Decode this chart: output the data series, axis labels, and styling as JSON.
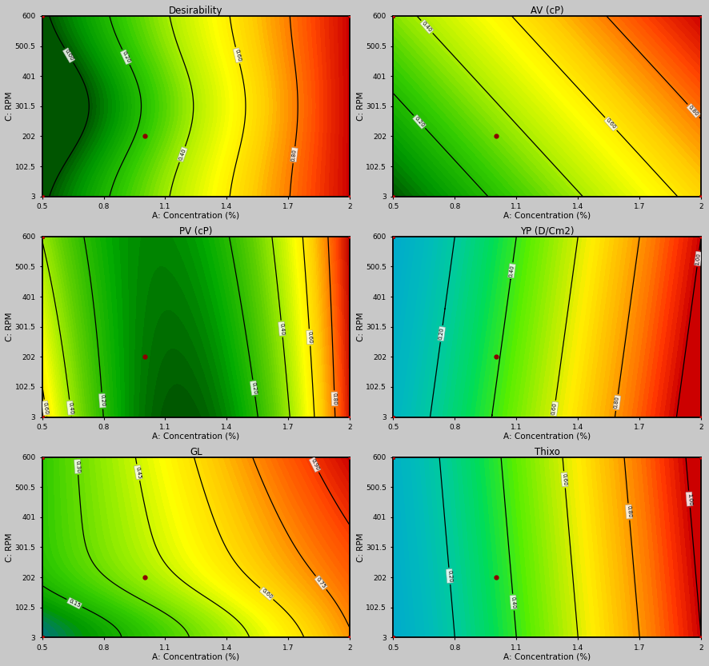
{
  "titles": [
    "Desirability",
    "AV (cP)",
    "PV (cP)",
    "YP (D/Cm2)",
    "GL",
    "Thixo"
  ],
  "xlabel": "A: Concentration (%)",
  "ylabel": "C: RPM",
  "x_range": [
    0.5,
    2.0
  ],
  "y_range": [
    3,
    600
  ],
  "x_ticks": [
    0.5,
    0.8,
    1.1,
    1.4,
    1.7,
    2.0
  ],
  "y_ticks": [
    3,
    102.5,
    202,
    301.5,
    401,
    500.5,
    600
  ],
  "opt_point": [
    1.0,
    202
  ],
  "fig_bg": "#c8c8c8",
  "ax_bg": "#f0f0f0",
  "n_contour_lines": {
    "Desirability": 6,
    "AV (cP)": 4,
    "PV (cP)": 5,
    "YP (D/Cm2)": 5,
    "GL": 6,
    "Thixo": 5
  }
}
